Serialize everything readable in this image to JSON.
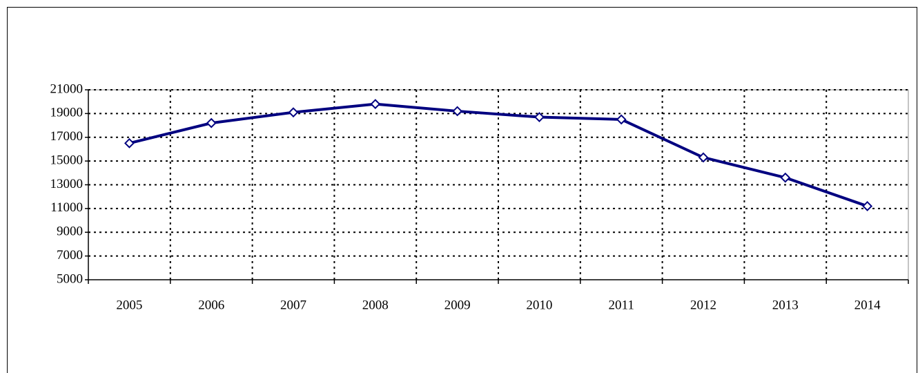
{
  "chart_data": {
    "type": "line",
    "categories": [
      "2005",
      "2006",
      "2007",
      "2008",
      "2009",
      "2010",
      "2011",
      "2012",
      "2013",
      "2014"
    ],
    "series": [
      {
        "color": "#000080",
        "values": [
          16500,
          18200,
          19100,
          19800,
          19200,
          18700,
          18500,
          15300,
          13600,
          11200
        ]
      }
    ],
    "ylim": [
      5000,
      21000
    ],
    "yticks": [
      5000,
      7000,
      9000,
      11000,
      13000,
      15000,
      17000,
      19000,
      21000
    ],
    "grid": true
  }
}
